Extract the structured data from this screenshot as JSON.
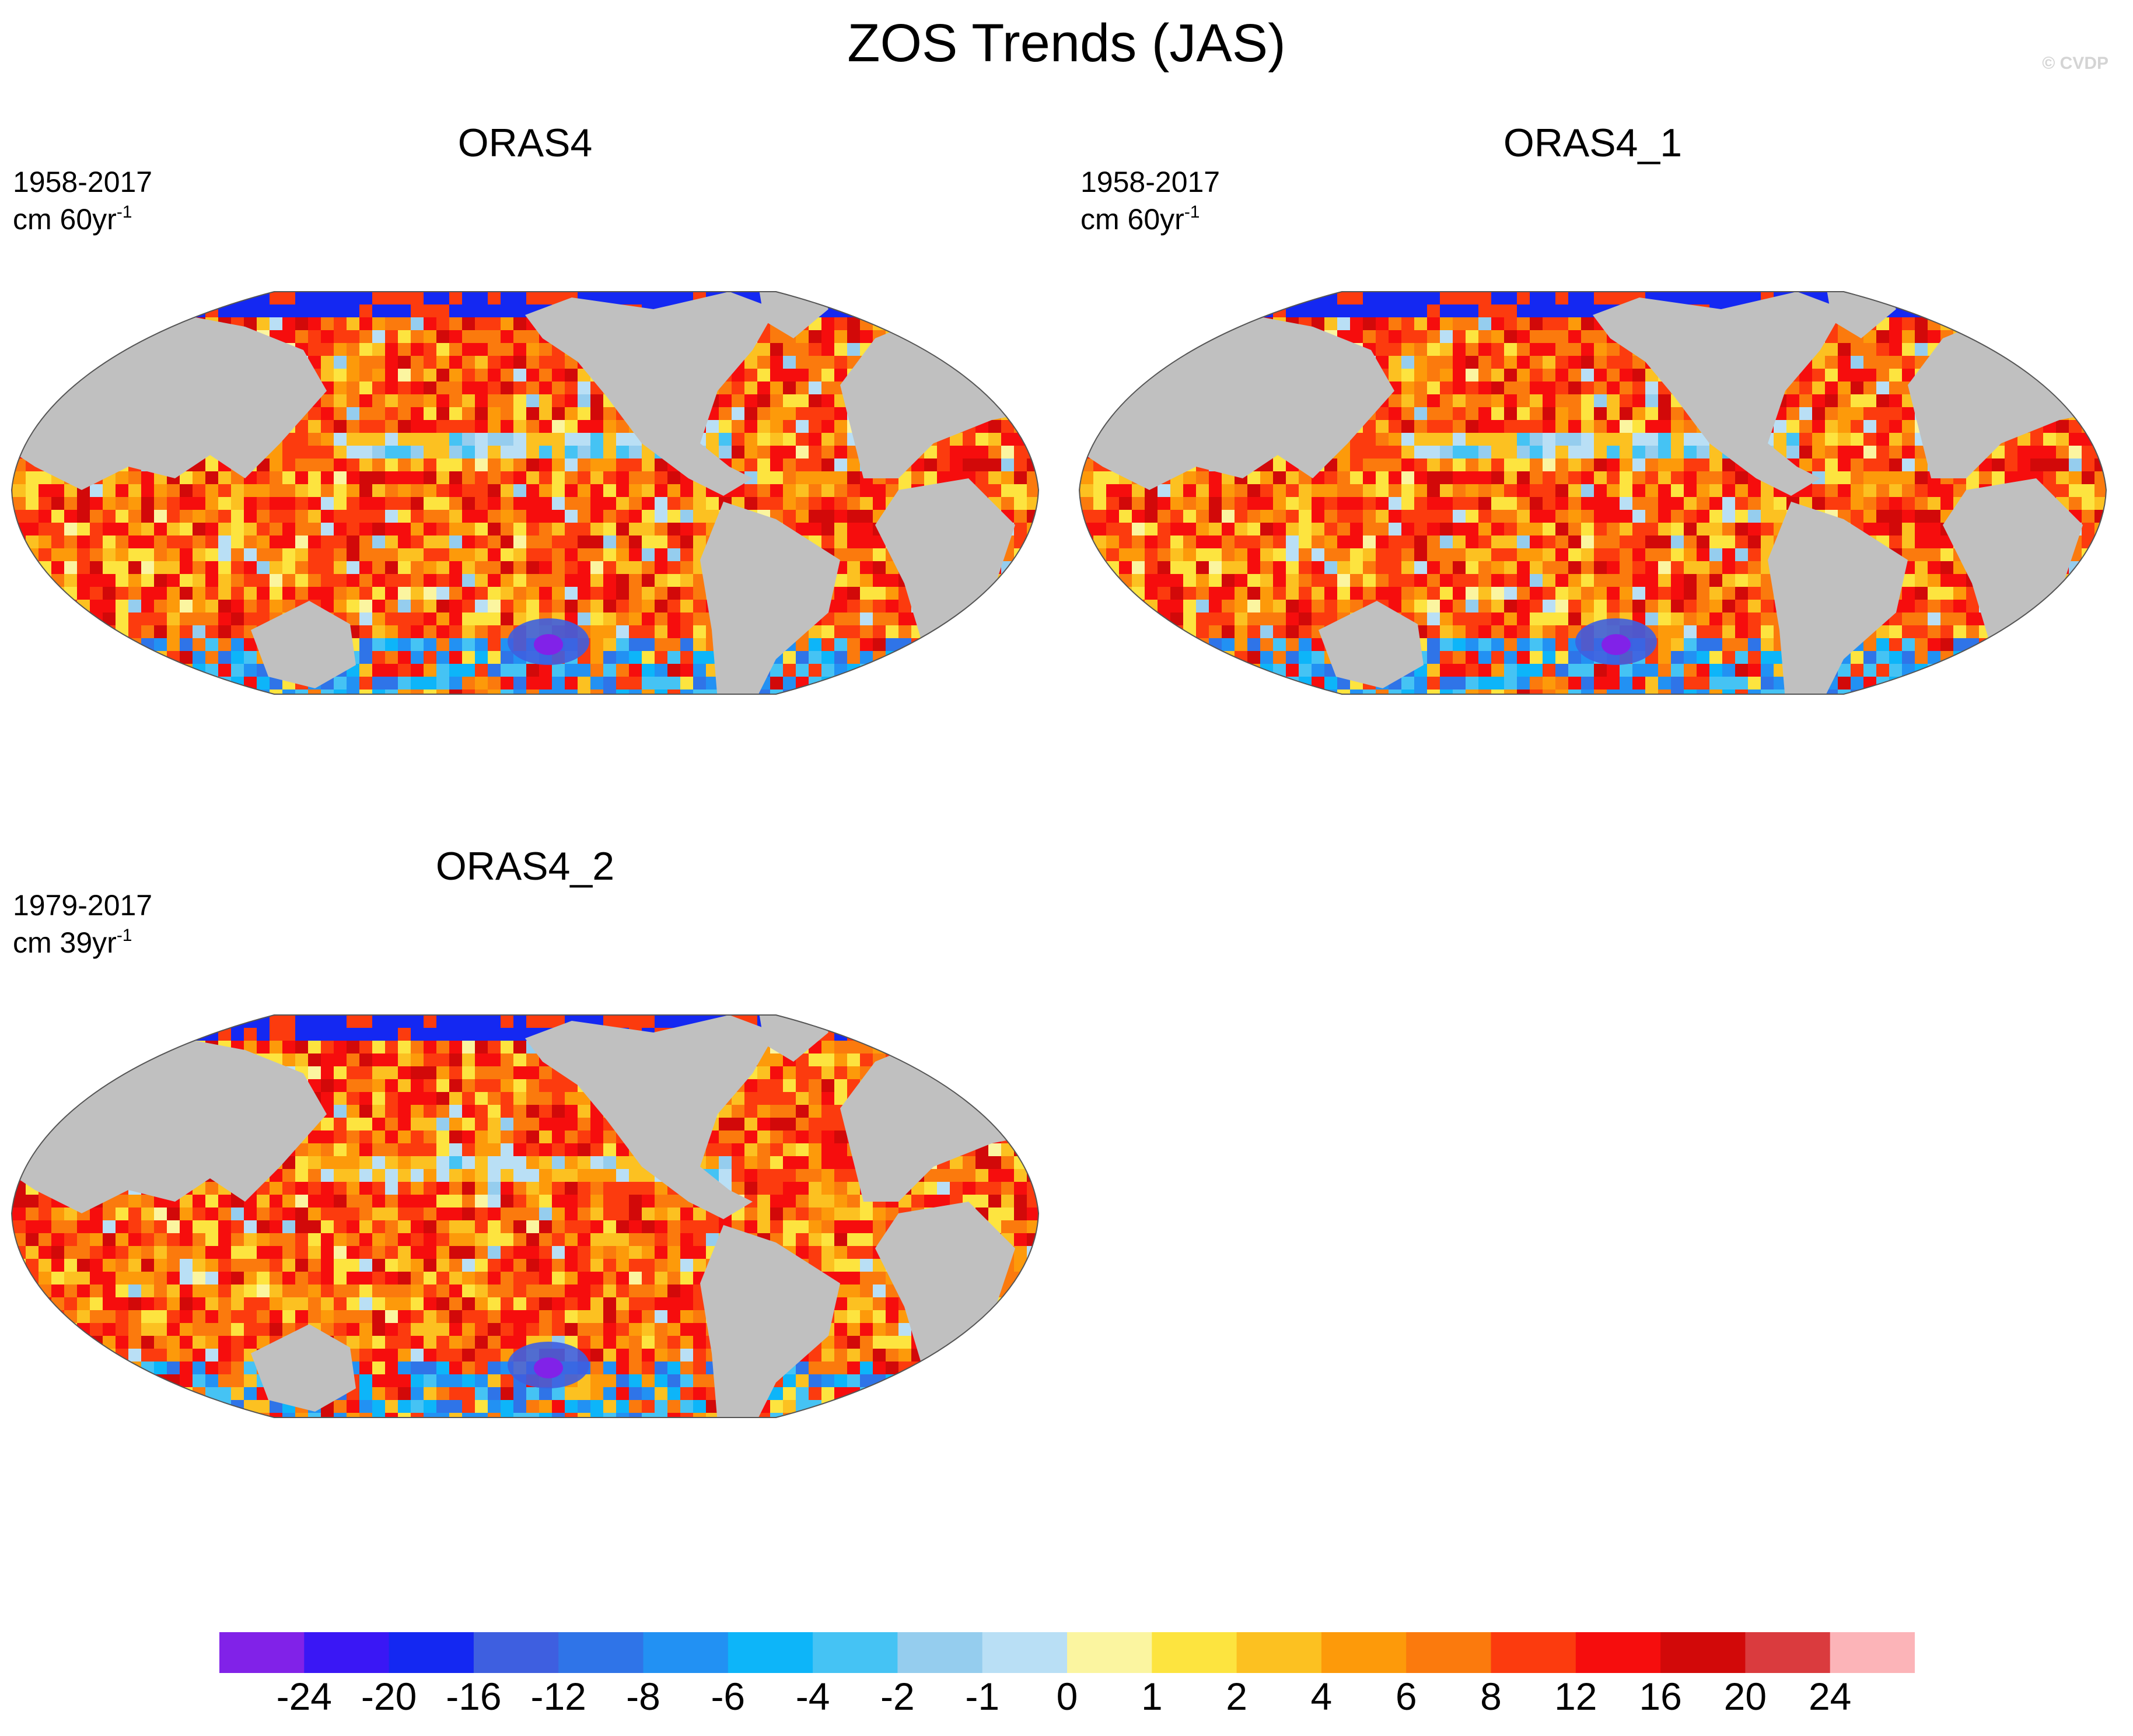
{
  "title": "ZOS Trends (JAS)",
  "copyright": "© CVDP",
  "colors": {
    "land": "#c0c0c0",
    "frame_stroke": "#555555",
    "background": "#ffffff"
  },
  "panels": [
    {
      "name": "ORAS4",
      "period": "1958-2017",
      "units_prefix": "cm 60yr",
      "units_exp": "-1",
      "seed": 11
    },
    {
      "name": "ORAS4_1",
      "period": "1958-2017",
      "units_prefix": "cm 60yr",
      "units_exp": "-1",
      "seed": 11
    },
    {
      "name": "ORAS4_2",
      "period": "1979-2017",
      "units_prefix": "cm 39yr",
      "units_exp": "-1",
      "seed": 29
    }
  ],
  "colorbar": {
    "levels": [
      "-24",
      "-20",
      "-16",
      "-12",
      "-8",
      "-6",
      "-4",
      "-2",
      "-1",
      "0",
      "1",
      "2",
      "4",
      "6",
      "8",
      "12",
      "16",
      "20",
      "24"
    ],
    "colors": [
      "#8122e8",
      "#3a17f5",
      "#1428f2",
      "#3e5fe0",
      "#2f74e8",
      "#2291f3",
      "#0db5f9",
      "#45c3f4",
      "#95cdee",
      "#b9dff5",
      "#fbf5a0",
      "#fde43f",
      "#fcc121",
      "#fd9a0a",
      "#fb7a0d",
      "#fc3b0e",
      "#f60d0d",
      "#d20909",
      "#da3b3e",
      "#fcb4b8"
    ]
  }
}
